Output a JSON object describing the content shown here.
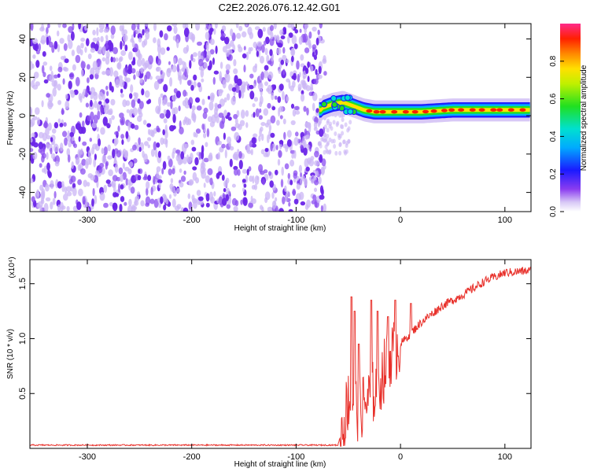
{
  "title": "C2E2.2026.076.12.42.G01",
  "colors": {
    "snr_line": "#e8302a",
    "axis": "#000000",
    "noise_dark": "#6a24e8",
    "noise_light": "#cbb6f5"
  },
  "chart_data": [
    {
      "type": "heatmap",
      "name": "spectrogram",
      "xlabel": "Height of straight line (km)",
      "ylabel": "Frequency (Hz)",
      "xlim": [
        -355,
        125
      ],
      "ylim": [
        -50,
        48
      ],
      "xticks": [
        -300,
        -200,
        -100,
        0,
        100
      ],
      "yticks": [
        -40,
        -20,
        0,
        20,
        40
      ],
      "noise_region_x": [
        -355,
        -78
      ],
      "signal_start_x": -78,
      "signal_track": [
        {
          "x": -75,
          "f": 4
        },
        {
          "x": -65,
          "f": 6
        },
        {
          "x": -55,
          "f": 7
        },
        {
          "x": -45,
          "f": 5
        },
        {
          "x": -35,
          "f": 3
        },
        {
          "x": -25,
          "f": 2
        },
        {
          "x": -10,
          "f": 2
        },
        {
          "x": 0,
          "f": 2
        },
        {
          "x": 20,
          "f": 2
        },
        {
          "x": 50,
          "f": 3
        },
        {
          "x": 80,
          "f": 3
        },
        {
          "x": 125,
          "f": 3
        }
      ],
      "colorbar": {
        "label": "Normalized spectral amplitude",
        "ticks": [
          0.0,
          0.2,
          0.4,
          0.6,
          0.8
        ],
        "tick_labels": [
          "0.0",
          "0.2",
          "0.4",
          "0.6",
          "0.8"
        ],
        "range": [
          0,
          1
        ]
      }
    },
    {
      "type": "line",
      "name": "snr",
      "xlabel": "Height of straight line (km)",
      "ylabel": "SNR (10 * v/v)",
      "multiplier_label": "(x10⁴)",
      "xlim": [
        -355,
        125
      ],
      "ylim": [
        0,
        1.72
      ],
      "xticks": [
        -300,
        -200,
        -100,
        0,
        100
      ],
      "yticks": [
        0.5,
        1.0,
        1.5
      ],
      "ytick_labels": [
        "0.5",
        "1.0",
        "1.5"
      ],
      "trend": [
        {
          "x": -355,
          "y": 0.03
        },
        {
          "x": -60,
          "y": 0.03
        },
        {
          "x": -55,
          "y": 0.2
        },
        {
          "x": -50,
          "y": 0.45
        },
        {
          "x": -45,
          "y": 0.4
        },
        {
          "x": -40,
          "y": 0.35
        },
        {
          "x": -30,
          "y": 0.45
        },
        {
          "x": -20,
          "y": 0.6
        },
        {
          "x": -10,
          "y": 0.85
        },
        {
          "x": 0,
          "y": 0.95
        },
        {
          "x": 10,
          "y": 1.05
        },
        {
          "x": 20,
          "y": 1.15
        },
        {
          "x": 40,
          "y": 1.3
        },
        {
          "x": 60,
          "y": 1.4
        },
        {
          "x": 80,
          "y": 1.52
        },
        {
          "x": 100,
          "y": 1.6
        },
        {
          "x": 125,
          "y": 1.62
        }
      ],
      "spikes": [
        {
          "x": -47,
          "y": 1.38
        },
        {
          "x": -44,
          "y": 1.25
        },
        {
          "x": -40,
          "y": 0.95
        },
        {
          "x": -28,
          "y": 1.35
        },
        {
          "x": -22,
          "y": 1.25
        },
        {
          "x": -12,
          "y": 1.2
        },
        {
          "x": -5,
          "y": 1.35
        },
        {
          "x": 10,
          "y": 1.32
        }
      ]
    }
  ]
}
